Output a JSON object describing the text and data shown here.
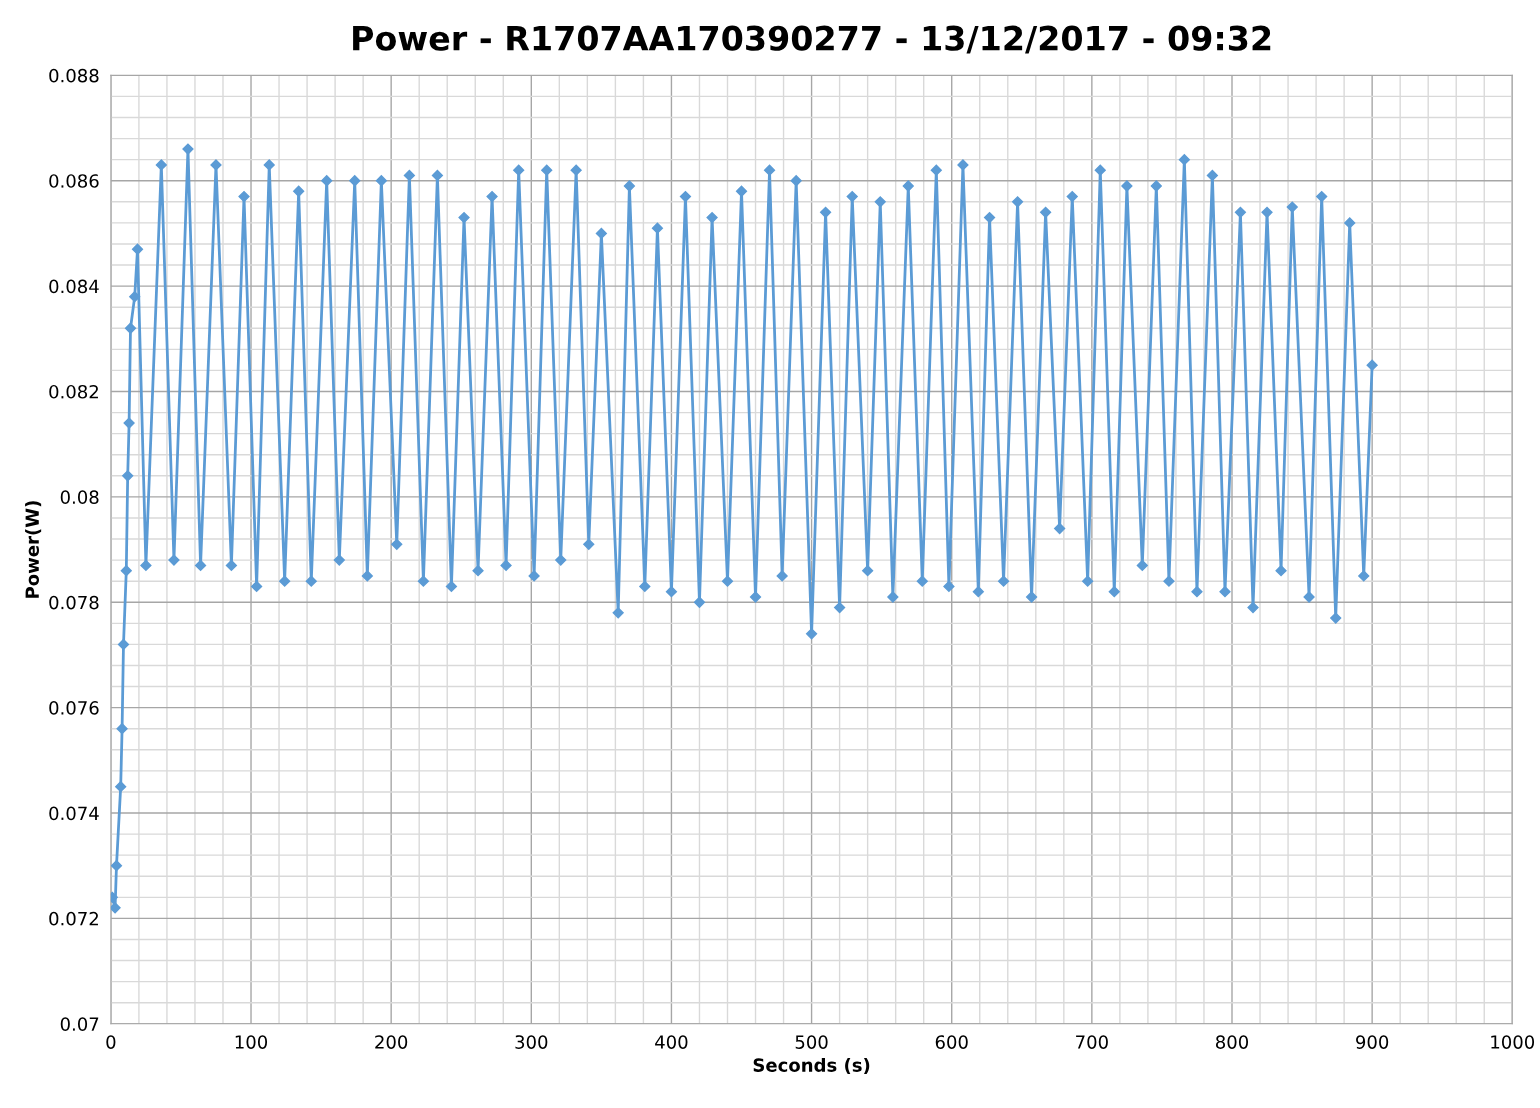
{
  "chart_data": {
    "type": "line",
    "title": "Power - R1707AA170390277 - 13/12/2017 - 09:32",
    "xlabel": "Seconds (s)",
    "ylabel": "Power(W)",
    "x": [
      1,
      3,
      4,
      7,
      8,
      9,
      11,
      12,
      13,
      14,
      17,
      19,
      25,
      36,
      45,
      55,
      64,
      75,
      86,
      95,
      104,
      113,
      124,
      134,
      143,
      154,
      163,
      174,
      183,
      193,
      204,
      213,
      223,
      233,
      243,
      252,
      262,
      272,
      282,
      291,
      302,
      311,
      321,
      332,
      341,
      350,
      362,
      370,
      381,
      390,
      400,
      410,
      420,
      429,
      440,
      450,
      460,
      470,
      479,
      489,
      500,
      510,
      520,
      529,
      540,
      549,
      558,
      569,
      579,
      589,
      598,
      608,
      619,
      627,
      637,
      647,
      657,
      667,
      677,
      686,
      697,
      706,
      716,
      725,
      736,
      746,
      755,
      766,
      775,
      786,
      795,
      806,
      815,
      825,
      835,
      843,
      855,
      864,
      874,
      884,
      894,
      900
    ],
    "series": [
      {
        "color": "#5b9bd5",
        "values": [
          0.0724,
          0.0722,
          0.073,
          0.0745,
          0.0756,
          0.0772,
          0.0786,
          0.0804,
          0.0814,
          0.0832,
          0.0838,
          0.0847,
          0.0787,
          0.0863,
          0.0788,
          0.0866,
          0.0787,
          0.0863,
          0.0787,
          0.0857,
          0.0783,
          0.0863,
          0.0784,
          0.0858,
          0.0784,
          0.086,
          0.0788,
          0.086,
          0.0785,
          0.086,
          0.0791,
          0.0861,
          0.0784,
          0.0861,
          0.0783,
          0.0853,
          0.0786,
          0.0857,
          0.0787,
          0.0862,
          0.0785,
          0.0862,
          0.0788,
          0.0862,
          0.0791,
          0.085,
          0.0778,
          0.0859,
          0.0783,
          0.0851,
          0.0782,
          0.0857,
          0.078,
          0.0853,
          0.0784,
          0.0858,
          0.0781,
          0.0862,
          0.0785,
          0.086,
          0.0774,
          0.0854,
          0.0779,
          0.0857,
          0.0786,
          0.0856,
          0.0781,
          0.0859,
          0.0784,
          0.0862,
          0.0783,
          0.0863,
          0.0782,
          0.0853,
          0.0784,
          0.0856,
          0.0781,
          0.0854,
          0.0794,
          0.0857,
          0.0784,
          0.0862,
          0.0782,
          0.0859,
          0.0787,
          0.0859,
          0.0784,
          0.0864,
          0.0782,
          0.0861,
          0.0782,
          0.0854,
          0.0779,
          0.0854,
          0.0786,
          0.0855,
          0.0781,
          0.0857,
          0.0777,
          0.0852,
          0.0785,
          0.0825
        ]
      }
    ],
    "marker": "diamond",
    "line_style": "solid",
    "grid": true,
    "xlim": [
      0,
      1000
    ],
    "ylim": [
      0.07,
      0.088
    ],
    "xticks": [
      0,
      {
        "value": 20,
        "label": null
      },
      {
        "value": 40,
        "label": null
      },
      {
        "value": 60,
        "label": null
      },
      {
        "value": 80,
        "label": null
      },
      100,
      {
        "value": 120,
        "label": null
      },
      {
        "value": 140,
        "label": null
      },
      {
        "value": 160,
        "label": null
      },
      {
        "value": 180,
        "label": null
      },
      200,
      {
        "value": 220,
        "label": null
      },
      {
        "value": 240,
        "label": null
      },
      {
        "value": 260,
        "label": null
      },
      {
        "value": 280,
        "label": null
      },
      300,
      {
        "value": 320,
        "label": null
      },
      {
        "value": 340,
        "label": null
      },
      {
        "value": 360,
        "label": null
      },
      {
        "value": 380,
        "label": null
      },
      400,
      {
        "value": 420,
        "label": null
      },
      {
        "value": 440,
        "label": null
      },
      {
        "value": 460,
        "label": null
      },
      {
        "value": 480,
        "label": null
      },
      500,
      {
        "value": 520,
        "label": null
      },
      {
        "value": 540,
        "label": null
      },
      {
        "value": 560,
        "label": null
      },
      {
        "value": 580,
        "label": null
      },
      600,
      {
        "value": 620,
        "label": null
      },
      {
        "value": 640,
        "label": null
      },
      {
        "value": 660,
        "label": null
      },
      {
        "value": 680,
        "label": null
      },
      700,
      {
        "value": 720,
        "label": null
      },
      {
        "value": 740,
        "label": null
      },
      {
        "value": 760,
        "label": null
      },
      {
        "value": 780,
        "label": null
      },
      800,
      {
        "value": 820,
        "label": null
      },
      {
        "value": 840,
        "label": null
      },
      {
        "value": 860,
        "label": null
      },
      {
        "value": 880,
        "label": null
      },
      900,
      {
        "value": 920,
        "label": null
      },
      {
        "value": 940,
        "label": null
      },
      {
        "value": 960,
        "label": null
      },
      {
        "value": 980,
        "label": null
      },
      1000
    ],
    "yticks": [
      0.07,
      {
        "value": 0.0704,
        "label": null
      },
      {
        "value": 0.0708,
        "label": null
      },
      {
        "value": 0.0712,
        "label": null
      },
      {
        "value": 0.0716,
        "label": null
      },
      0.072,
      {
        "value": 0.0724,
        "label": null
      },
      {
        "value": 0.0728,
        "label": null
      },
      {
        "value": 0.0732,
        "label": null
      },
      {
        "value": 0.0736,
        "label": null
      },
      0.074,
      {
        "value": 0.0744,
        "label": null
      },
      {
        "value": 0.0748,
        "label": null
      },
      {
        "value": 0.0752,
        "label": null
      },
      {
        "value": 0.0756,
        "label": null
      },
      0.076,
      {
        "value": 0.0764,
        "label": null
      },
      {
        "value": 0.0768,
        "label": null
      },
      {
        "value": 0.0772,
        "label": null
      },
      {
        "value": 0.0776,
        "label": null
      },
      0.078,
      {
        "value": 0.0784,
        "label": null
      },
      {
        "value": 0.0788,
        "label": null
      },
      {
        "value": 0.0792,
        "label": null
      },
      {
        "value": 0.0796,
        "label": null
      },
      0.08,
      {
        "value": 0.0804,
        "label": null
      },
      {
        "value": 0.0808,
        "label": null
      },
      {
        "value": 0.0812,
        "label": null
      },
      {
        "value": 0.0816,
        "label": null
      },
      0.082,
      {
        "value": 0.0824,
        "label": null
      },
      {
        "value": 0.0828,
        "label": null
      },
      {
        "value": 0.0832,
        "label": null
      },
      {
        "value": 0.0836,
        "label": null
      },
      0.084,
      {
        "value": 0.0844,
        "label": null
      },
      {
        "value": 0.0848,
        "label": null
      },
      {
        "value": 0.0852,
        "label": null
      },
      {
        "value": 0.0856,
        "label": null
      },
      0.086,
      {
        "value": 0.0864,
        "label": null
      },
      {
        "value": 0.0868,
        "label": null
      },
      {
        "value": 0.0872,
        "label": null
      },
      {
        "value": 0.0876,
        "label": null
      },
      0.088
    ]
  }
}
